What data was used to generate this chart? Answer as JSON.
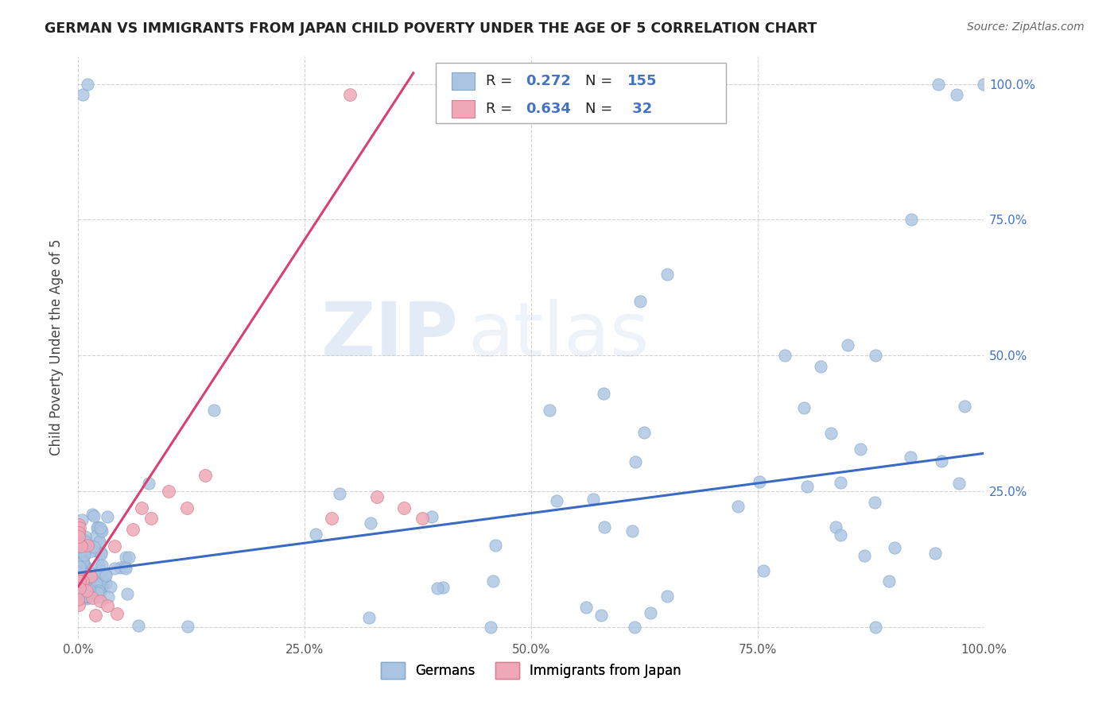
{
  "title": "GERMAN VS IMMIGRANTS FROM JAPAN CHILD POVERTY UNDER THE AGE OF 5 CORRELATION CHART",
  "source": "Source: ZipAtlas.com",
  "ylabel": "Child Poverty Under the Age of 5",
  "legend_german_R": "0.272",
  "legend_german_N": "155",
  "legend_japan_R": "0.634",
  "legend_japan_N": "32",
  "legend_label_german": "Germans",
  "legend_label_japan": "Immigrants from Japan",
  "german_color": "#aac4e2",
  "german_edge_color": "#85a8cc",
  "japan_color": "#f0a8b8",
  "japan_edge_color": "#d08090",
  "german_line_color": "#3a6bc4",
  "japan_line_color": "#d94070",
  "background_color": "#ffffff",
  "grid_color": "#cccccc",
  "watermark_zip": "ZIP",
  "watermark_atlas": "atlas",
  "tick_color": "#4472c4",
  "title_color": "#222222",
  "source_color": "#666666",
  "xlim": [
    0.0,
    1.0
  ],
  "ylim": [
    -0.02,
    1.05
  ],
  "xticks": [
    0.0,
    0.25,
    0.5,
    0.75,
    1.0
  ],
  "yticks": [
    0.0,
    0.25,
    0.5,
    0.75,
    1.0
  ],
  "xticklabels": [
    "0.0%",
    "25.0%",
    "50.0%",
    "75.0%",
    "100.0%"
  ],
  "yticklabels": [
    "",
    "25.0%",
    "50.0%",
    "75.0%",
    "100.0%"
  ],
  "german_line_x": [
    0.0,
    1.0
  ],
  "german_line_y": [
    0.1,
    0.32
  ],
  "japan_line_x": [
    0.0,
    0.37
  ],
  "japan_line_y": [
    0.075,
    1.02
  ]
}
